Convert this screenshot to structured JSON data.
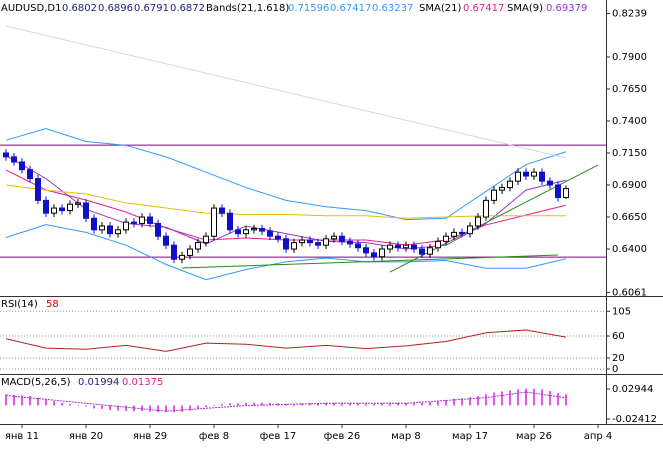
{
  "chart_data": [
    {
      "type": "candlestick",
      "symbol": "AUDUSD,D1",
      "categories": [
        null,
        null,
        "янв 11",
        null,
        null,
        null,
        null,
        null,
        null,
        null,
        "янв 20",
        null,
        null,
        null,
        null,
        null,
        null,
        null,
        "янв 29",
        null,
        null,
        null,
        null,
        null,
        null,
        null,
        "фев 8",
        null,
        null,
        null,
        null,
        null,
        null,
        null,
        "фев 17",
        null,
        null,
        null,
        null,
        null,
        null,
        null,
        "фев 26",
        null,
        null,
        null,
        null,
        null,
        null,
        null,
        "мар 8",
        null,
        null,
        null,
        null,
        null,
        null,
        null,
        "мар 17",
        null,
        null,
        null,
        null,
        null,
        null,
        null,
        "мар 26",
        null,
        null,
        null,
        null,
        null,
        null,
        null,
        "апр 4"
      ],
      "open": [
        0.715,
        0.712,
        0.708,
        0.702,
        0.695,
        0.678,
        0.668,
        0.672,
        0.67,
        0.675,
        0.676,
        0.664,
        0.655,
        0.658,
        0.652,
        0.655,
        0.661,
        0.66,
        0.665,
        0.66,
        0.65,
        0.643,
        0.632,
        0.635,
        0.64,
        0.645,
        0.65,
        0.672,
        0.668,
        0.655,
        0.652,
        0.655,
        0.656,
        0.654,
        0.65,
        0.648,
        0.64,
        0.645,
        0.647,
        0.645,
        0.643,
        0.648,
        0.65,
        0.646,
        0.644,
        0.641,
        0.637,
        0.634,
        0.64,
        0.643,
        0.641,
        0.643,
        0.64,
        0.636,
        0.641,
        0.646,
        0.65,
        0.653,
        0.652,
        0.658,
        0.665,
        0.678,
        0.686,
        0.688,
        0.693,
        0.7,
        0.697,
        0.7,
        0.693,
        0.69,
        0.6802,
        null,
        null,
        null,
        null
      ],
      "high": [
        0.718,
        0.715,
        0.711,
        0.705,
        0.698,
        0.681,
        0.675,
        0.675,
        0.678,
        0.679,
        0.679,
        0.667,
        0.661,
        0.661,
        0.658,
        0.664,
        0.664,
        0.668,
        0.668,
        0.663,
        0.653,
        0.646,
        0.638,
        0.643,
        0.648,
        0.653,
        0.675,
        0.675,
        0.671,
        0.658,
        0.658,
        0.659,
        0.659,
        0.657,
        0.653,
        0.651,
        0.648,
        0.65,
        0.65,
        0.648,
        0.651,
        0.653,
        0.653,
        0.649,
        0.647,
        0.644,
        0.64,
        0.643,
        0.646,
        0.646,
        0.646,
        0.646,
        0.643,
        0.644,
        0.649,
        0.653,
        0.656,
        0.656,
        0.661,
        0.668,
        0.681,
        0.689,
        0.691,
        0.696,
        0.703,
        0.703,
        0.703,
        0.703,
        0.696,
        0.693,
        0.6896,
        null,
        null,
        null,
        null
      ],
      "low": [
        0.709,
        0.705,
        0.699,
        0.692,
        0.675,
        0.665,
        0.665,
        0.667,
        0.667,
        0.672,
        0.661,
        0.652,
        0.652,
        0.649,
        0.649,
        0.652,
        0.657,
        0.657,
        0.657,
        0.647,
        0.64,
        0.629,
        0.629,
        0.632,
        0.637,
        0.642,
        0.647,
        0.665,
        0.652,
        0.649,
        0.649,
        0.652,
        0.651,
        0.647,
        0.645,
        0.637,
        0.637,
        0.642,
        0.642,
        0.64,
        0.64,
        0.645,
        0.643,
        0.641,
        0.638,
        0.634,
        0.631,
        0.631,
        0.637,
        0.638,
        0.638,
        0.637,
        0.633,
        0.633,
        0.638,
        0.643,
        0.647,
        0.649,
        0.649,
        0.655,
        0.662,
        0.675,
        0.683,
        0.685,
        0.69,
        0.694,
        0.694,
        0.69,
        0.687,
        0.6772,
        0.6791,
        null,
        null,
        null,
        null
      ],
      "close": [
        0.712,
        0.708,
        0.702,
        0.695,
        0.678,
        0.668,
        0.672,
        0.67,
        0.675,
        0.676,
        0.664,
        0.655,
        0.658,
        0.652,
        0.655,
        0.661,
        0.66,
        0.665,
        0.66,
        0.65,
        0.643,
        0.632,
        0.635,
        0.64,
        0.645,
        0.65,
        0.672,
        0.668,
        0.655,
        0.652,
        0.655,
        0.656,
        0.654,
        0.65,
        0.648,
        0.64,
        0.645,
        0.647,
        0.645,
        0.643,
        0.648,
        0.65,
        0.646,
        0.644,
        0.641,
        0.637,
        0.634,
        0.64,
        0.643,
        0.641,
        0.643,
        0.64,
        0.636,
        0.641,
        0.646,
        0.65,
        0.653,
        0.652,
        0.658,
        0.665,
        0.678,
        0.686,
        0.688,
        0.693,
        0.7,
        0.697,
        0.7,
        0.693,
        0.69,
        0.6802,
        0.6872,
        null,
        null,
        null,
        null
      ],
      "up_color": "#ffffff",
      "down_color": "#1010c8",
      "overlays": [
        {
          "name": "Bands(21,1.618)",
          "color": "#3399ff",
          "x": [
            0,
            5,
            10,
            15,
            20,
            25,
            30,
            35,
            40,
            45,
            50,
            55,
            60,
            65,
            70
          ],
          "upper": [
            0.725,
            0.734,
            0.724,
            0.721,
            0.712,
            0.7,
            0.688,
            0.678,
            0.673,
            0.67,
            0.663,
            0.664,
            0.685,
            0.706,
            0.71596
          ],
          "lower": [
            0.649,
            0.659,
            0.653,
            0.643,
            0.628,
            0.616,
            0.624,
            0.63,
            0.633,
            0.63,
            0.63,
            0.631,
            0.625,
            0.625,
            0.63237
          ]
        },
        {
          "name": "SMA(21)",
          "color": "#e0208c",
          "x": [
            0,
            5,
            10,
            15,
            20,
            25,
            30,
            35,
            40,
            45,
            50,
            55,
            60,
            65,
            70
          ],
          "values": [
            0.7017,
            0.6861,
            0.6783,
            0.6689,
            0.6564,
            0.647,
            0.6486,
            0.647,
            0.647,
            0.647,
            0.6431,
            0.647,
            0.6588,
            0.6666,
            0.67417
          ]
        },
        {
          "name": "SMA(9)",
          "color": "#9932cc",
          "x": [
            0,
            5,
            10,
            15,
            20,
            25,
            30,
            35,
            40,
            45,
            50,
            55,
            60,
            65,
            70
          ],
          "values": [
            0.713,
            0.695,
            0.671,
            0.66,
            0.657,
            0.644,
            0.658,
            0.652,
            0.646,
            0.645,
            0.64,
            0.643,
            0.66,
            0.686,
            0.69379
          ]
        },
        {
          "color": "#e6c000",
          "x": [
            0,
            5,
            10,
            15,
            20,
            25,
            30,
            35,
            40,
            45,
            50,
            55,
            60,
            65,
            70
          ],
          "values": [
            0.69,
            0.686,
            0.683,
            0.676,
            0.672,
            0.668,
            0.667,
            0.667,
            0.666,
            0.666,
            0.664,
            0.665,
            0.666,
            0.666,
            0.666
          ]
        },
        {
          "color": "#d8d8d8",
          "x": [
            0,
            70
          ],
          "values": [
            0.8142,
            0.7111
          ]
        }
      ],
      "trendlines": [
        {
          "color": "#228b22",
          "x": [
            22,
            69
          ],
          "values": [
            0.6252,
            0.6353
          ]
        },
        {
          "color": "#228b22",
          "x": [
            48,
            74
          ],
          "values": [
            0.622,
            0.7056
          ]
        }
      ],
      "levels": {
        "color": "#800080",
        "values": [
          0.7212,
          0.6337
        ]
      },
      "ylim": [
        0.6033,
        0.8314
      ],
      "yticks": [
        0.8239,
        {
          "value": 0.79,
          "label": "0.7900"
        },
        {
          "value": 0.765,
          "label": "0.7650"
        },
        {
          "value": 0.74,
          "label": "0.7400"
        },
        {
          "value": 0.715,
          "label": "0.7150"
        },
        {
          "value": 0.69,
          "label": "0.6900"
        },
        {
          "value": 0.665,
          "label": "0.6650"
        },
        {
          "value": 0.64,
          "label": "0.6400"
        },
        0.6061
      ]
    },
    {
      "type": "line",
      "name": "RSI(14)",
      "color": "#b22222",
      "x": [
        0,
        5,
        10,
        15,
        20,
        25,
        30,
        35,
        40,
        45,
        50,
        55,
        60,
        65,
        70
      ],
      "values": [
        55,
        38,
        36,
        43,
        32,
        47,
        45,
        38,
        43,
        37,
        42,
        50,
        66,
        71,
        58
      ],
      "ylim": [
        -9.1,
        129.1
      ],
      "yticks": [
        105,
        60,
        20,
        0
      ],
      "grid": true
    },
    {
      "type": "macd",
      "name": "MACD(5,26,5)",
      "color": "#e020e0",
      "signal_color": "#9932cc",
      "values": [
        0.02,
        0.019,
        0.018,
        0.017,
        0.014,
        0.011,
        0.008,
        0.005,
        0.003,
        0.001,
        -0.002,
        -0.005,
        -0.006,
        -0.008,
        -0.009,
        -0.01,
        -0.01,
        -0.01,
        -0.011,
        -0.012,
        -0.012,
        -0.012,
        -0.011,
        -0.009,
        -0.006,
        -0.003,
        0.001,
        0.003,
        0.004,
        0.004,
        0.005,
        0.005,
        0.005,
        0.005,
        0.004,
        0.003,
        0.003,
        0.004,
        0.004,
        0.004,
        0.005,
        0.005,
        0.005,
        0.004,
        0.004,
        0.003,
        0.003,
        0.004,
        0.005,
        0.005,
        0.005,
        0.005,
        0.005,
        0.006,
        0.008,
        0.01,
        0.012,
        0.013,
        0.015,
        0.017,
        0.02,
        0.023,
        0.025,
        0.027,
        0.029,
        0.03,
        0.03,
        0.029,
        0.026,
        0.022,
        0.01994,
        null,
        null,
        null,
        null
      ],
      "signal_x": [
        0,
        10,
        20,
        30,
        40,
        50,
        60,
        65,
        70
      ],
      "signal": [
        0.018,
        0.004,
        -0.01,
        0.0,
        0.004,
        0.004,
        0.014,
        0.024,
        0.01375
      ],
      "ylim": [
        -0.033,
        0.0527
      ],
      "yticks": [
        0.02944,
        -0.02412
      ]
    }
  ]
}
